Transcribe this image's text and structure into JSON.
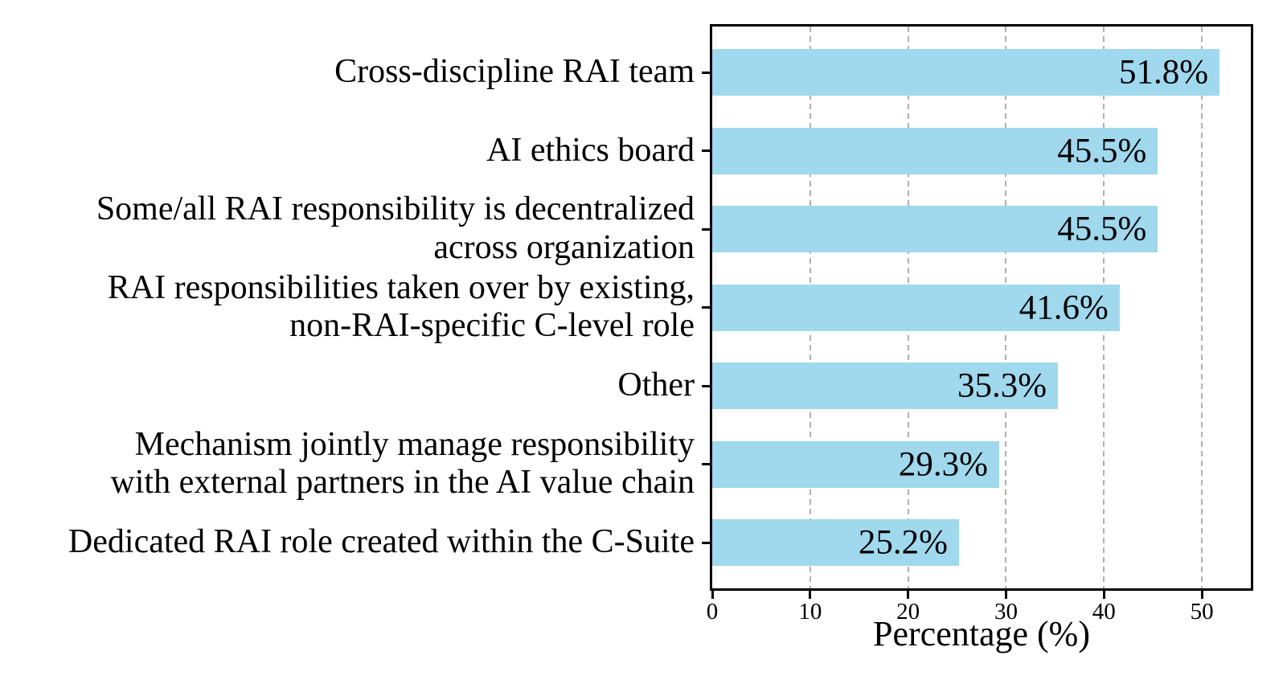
{
  "chart_data": {
    "type": "bar",
    "orientation": "horizontal",
    "title": "",
    "xlabel": "Percentage (%)",
    "ylabel": "",
    "categories": [
      "Cross-discipline RAI team",
      "AI ethics board",
      "Some/all RAI responsibility is decentralized\nacross organization",
      "RAI responsibilities taken over by existing,\nnon-RAI-specific C-level role",
      "Other",
      "Mechanism jointly manage responsibility\nwith external partners in the AI value chain",
      "Dedicated RAI role created within the C-Suite"
    ],
    "values": [
      51.8,
      45.5,
      45.5,
      41.6,
      35.3,
      29.3,
      25.2
    ],
    "value_labels": [
      "51.8%",
      "45.5%",
      "45.5%",
      "41.6%",
      "35.3%",
      "29.3%",
      "25.2%"
    ],
    "xlim": [
      0,
      55
    ],
    "xticks": [
      0,
      10,
      20,
      30,
      40,
      50
    ],
    "grid": "vertical-dashed",
    "legend": "none",
    "colors": {
      "bar": "#A0D8EE",
      "grid": "#b0b0b0",
      "spine": "#000000",
      "text": "#000000",
      "background": "#ffffff"
    }
  }
}
